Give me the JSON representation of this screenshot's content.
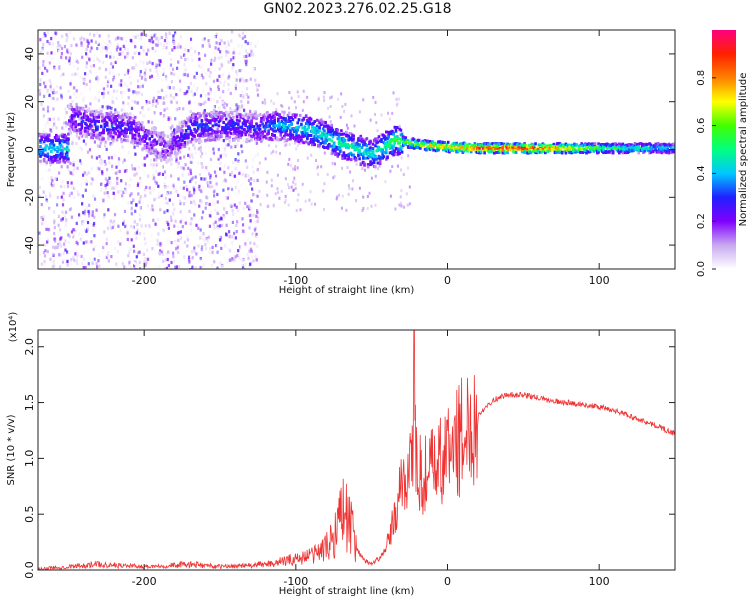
{
  "title": "GN02.2023.276.02.25.G18",
  "chart_data": [
    {
      "type": "heatmap",
      "xlabel": "Height of straight line (km)",
      "ylabel": "Frequency (Hz)",
      "xlim": [
        -270,
        150
      ],
      "ylim": [
        -50,
        50
      ],
      "xticks": [
        -200,
        -100,
        0,
        100
      ],
      "yticks": [
        -40,
        -20,
        0,
        20,
        40
      ],
      "colorbar": {
        "label": "Normalized spectral amplitude",
        "range": [
          0,
          1
        ],
        "ticks": [
          "0.0",
          "0.2",
          "0.4",
          "0.6",
          "0.8"
        ],
        "colormap": [
          "#ffffff",
          "#c8a8f0",
          "#8000ff",
          "#2020ff",
          "#00c8ff",
          "#00ff80",
          "#40ff00",
          "#ffff00",
          "#ff8000",
          "#ff2000",
          "#ff0080"
        ]
      },
      "ridge": [
        {
          "x": -250,
          "y": 13,
          "amp": 0.25
        },
        {
          "x": -230,
          "y": 10,
          "amp": 0.3
        },
        {
          "x": -210,
          "y": 9,
          "amp": 0.28
        },
        {
          "x": -185,
          "y": 0,
          "amp": 0.2
        },
        {
          "x": -170,
          "y": 9,
          "amp": 0.32
        },
        {
          "x": -150,
          "y": 10,
          "amp": 0.3
        },
        {
          "x": -130,
          "y": 9,
          "amp": 0.28
        },
        {
          "x": -110,
          "y": 10,
          "amp": 0.4
        },
        {
          "x": -90,
          "y": 8,
          "amp": 0.45
        },
        {
          "x": -70,
          "y": 2,
          "amp": 0.5
        },
        {
          "x": -50,
          "y": -2,
          "amp": 0.45
        },
        {
          "x": -35,
          "y": 4,
          "amp": 0.55
        },
        {
          "x": -20,
          "y": 2,
          "amp": 0.7
        },
        {
          "x": 0,
          "y": 1,
          "amp": 0.8
        },
        {
          "x": 20,
          "y": 0.5,
          "amp": 0.9
        },
        {
          "x": 40,
          "y": 0.5,
          "amp": 0.95
        },
        {
          "x": 60,
          "y": 0.5,
          "amp": 0.9
        },
        {
          "x": 80,
          "y": 0.5,
          "amp": 0.75
        },
        {
          "x": 100,
          "y": 0.5,
          "amp": 0.6
        },
        {
          "x": 120,
          "y": 0.5,
          "amp": 0.5
        },
        {
          "x": 150,
          "y": 0.5,
          "amp": 0.45
        }
      ]
    },
    {
      "type": "line",
      "xlabel": "Height of straight line (km)",
      "ylabel": "SNR (10 * v/v)",
      "yunit": "(x10⁴)",
      "xlim": [
        -270,
        150
      ],
      "ylim": [
        0,
        2.15
      ],
      "xticks": [
        -200,
        -100,
        0,
        100
      ],
      "yticks": [
        0.0,
        0.5,
        1.0,
        1.5,
        2.0
      ],
      "ytick_labels": [
        "0.0",
        "0.5",
        "1.0",
        "1.5",
        "2.0"
      ],
      "series": [
        {
          "color": "#ee3333",
          "x": [
            -270,
            -250,
            -230,
            -200,
            -170,
            -150,
            -130,
            -115,
            -100,
            -90,
            -80,
            -75,
            -70,
            -65,
            -60,
            -55,
            -50,
            -45,
            -40,
            -35,
            -30,
            -25,
            -22,
            -20,
            -15,
            -10,
            -5,
            0,
            5,
            10,
            15,
            20,
            25,
            30,
            35,
            40,
            50,
            60,
            70,
            80,
            90,
            100,
            110,
            120,
            130,
            140,
            150
          ],
          "y": [
            0.01,
            0.03,
            0.05,
            0.03,
            0.05,
            0.03,
            0.04,
            0.06,
            0.1,
            0.13,
            0.2,
            0.3,
            0.55,
            0.45,
            0.2,
            0.08,
            0.06,
            0.1,
            0.2,
            0.45,
            0.75,
            0.95,
            1.2,
            0.85,
            0.85,
            0.9,
            0.95,
            1.05,
            1.15,
            1.2,
            1.3,
            1.38,
            1.46,
            1.52,
            1.55,
            1.57,
            1.57,
            1.54,
            1.51,
            1.5,
            1.48,
            1.46,
            1.43,
            1.38,
            1.33,
            1.28,
            1.22
          ]
        }
      ]
    }
  ]
}
